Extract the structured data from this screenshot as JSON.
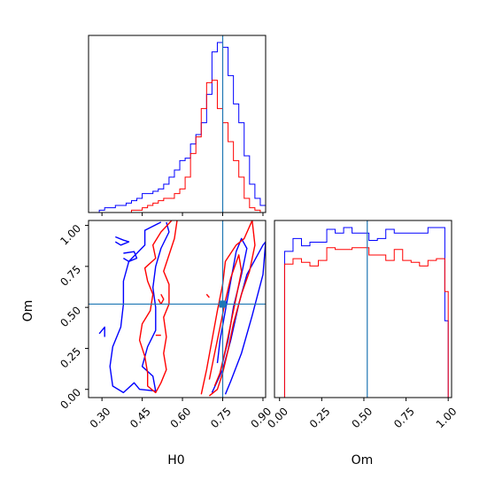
{
  "colors": {
    "series_a": "#0000ff",
    "series_b": "#ff0000",
    "truth": "#1f77b4"
  },
  "chart_data": [
    {
      "type": "histogram",
      "panel": "H0 marginal (top-left)",
      "xlim": [
        0.25,
        0.91
      ],
      "truth_x": 0.75,
      "yticks_shown": false,
      "series": [
        {
          "color": "blue",
          "bin_edges": [
            0.27,
            0.29,
            0.31,
            0.33,
            0.35,
            0.37,
            0.39,
            0.41,
            0.43,
            0.45,
            0.47,
            0.49,
            0.51,
            0.53,
            0.55,
            0.57,
            0.59,
            0.61,
            0.63,
            0.65,
            0.67,
            0.69,
            0.71,
            0.73,
            0.75,
            0.77,
            0.79,
            0.81,
            0.83,
            0.85,
            0.87,
            0.89,
            0.91
          ],
          "counts": [
            0,
            1,
            2,
            2,
            3,
            3,
            4,
            5,
            6,
            8,
            8,
            9,
            10,
            12,
            15,
            18,
            22,
            23,
            29,
            33,
            38,
            50,
            68,
            72,
            70,
            58,
            46,
            38,
            24,
            12,
            6,
            3
          ]
        },
        {
          "color": "red",
          "bin_edges": [
            0.27,
            0.29,
            0.31,
            0.33,
            0.35,
            0.37,
            0.39,
            0.41,
            0.43,
            0.45,
            0.47,
            0.49,
            0.51,
            0.53,
            0.55,
            0.57,
            0.59,
            0.61,
            0.63,
            0.65,
            0.67,
            0.69,
            0.71,
            0.73,
            0.75,
            0.77,
            0.79,
            0.81,
            0.83,
            0.85,
            0.87,
            0.89,
            0.91
          ],
          "counts": [
            0,
            0,
            0,
            0,
            0,
            0,
            0,
            1,
            1,
            2,
            3,
            4,
            5,
            6,
            6,
            8,
            10,
            15,
            25,
            32,
            44,
            55,
            56,
            44,
            38,
            30,
            22,
            15,
            6,
            2,
            1,
            0
          ]
        }
      ]
    },
    {
      "type": "contour",
      "panel": "Om vs H0 joint (bottom-left)",
      "xlabel": "H0",
      "ylabel": "Om",
      "xlim": [
        0.25,
        0.91
      ],
      "ylim": [
        -0.05,
        1.03
      ],
      "xticks": [
        "0.30",
        "0.45",
        "0.60",
        "0.75",
        "0.90"
      ],
      "yticks": [
        "0.00",
        "0.25",
        "0.50",
        "0.75",
        "1.00"
      ],
      "truth": {
        "x": 0.75,
        "y": 0.52
      },
      "series": [
        {
          "color": "blue",
          "contours": [
            [
              [
                0.52,
                1.02
              ],
              [
                0.46,
                0.97
              ],
              [
                0.46,
                0.88
              ],
              [
                0.4,
                0.78
              ],
              [
                0.38,
                0.66
              ],
              [
                0.38,
                0.52
              ],
              [
                0.37,
                0.38
              ],
              [
                0.34,
                0.26
              ],
              [
                0.33,
                0.14
              ],
              [
                0.34,
                0.02
              ],
              [
                0.38,
                -0.02
              ],
              [
                0.42,
                0.04
              ],
              [
                0.44,
                0.0
              ],
              [
                0.5,
                -0.01
              ],
              [
                0.49,
                0.08
              ],
              [
                0.45,
                0.14
              ],
              [
                0.47,
                0.26
              ],
              [
                0.5,
                0.36
              ],
              [
                0.5,
                0.5
              ],
              [
                0.49,
                0.62
              ],
              [
                0.5,
                0.75
              ],
              [
                0.52,
                0.86
              ],
              [
                0.55,
                0.96
              ],
              [
                0.54,
                1.02
              ]
            ],
            [
              [
                0.71,
                -0.02
              ],
              [
                0.75,
                0.12
              ],
              [
                0.78,
                0.3
              ],
              [
                0.81,
                0.52
              ],
              [
                0.84,
                0.7
              ],
              [
                0.88,
                0.82
              ],
              [
                0.9,
                0.88
              ],
              [
                0.91,
                0.9
              ],
              [
                0.9,
                0.7
              ],
              [
                0.86,
                0.45
              ],
              [
                0.82,
                0.22
              ],
              [
                0.78,
                0.05
              ],
              [
                0.76,
                -0.03
              ]
            ],
            [
              [
                0.74,
                0.1
              ],
              [
                0.77,
                0.3
              ],
              [
                0.79,
                0.5
              ],
              [
                0.82,
                0.7
              ],
              [
                0.84,
                0.86
              ],
              [
                0.82,
                0.92
              ],
              [
                0.8,
                0.84
              ],
              [
                0.78,
                0.66
              ],
              [
                0.76,
                0.48
              ],
              [
                0.74,
                0.3
              ],
              [
                0.73,
                0.16
              ]
            ],
            [
              [
                0.35,
                0.93
              ],
              [
                0.38,
                0.91
              ],
              [
                0.4,
                0.9
              ],
              [
                0.37,
                0.88
              ],
              [
                0.35,
                0.9
              ]
            ],
            [
              [
                0.38,
                0.83
              ],
              [
                0.42,
                0.84
              ],
              [
                0.43,
                0.8
              ],
              [
                0.4,
                0.78
              ],
              [
                0.38,
                0.8
              ]
            ],
            [
              [
                0.29,
                0.34
              ],
              [
                0.31,
                0.38
              ],
              [
                0.31,
                0.32
              ]
            ]
          ]
        },
        {
          "color": "red",
          "contours": [
            [
              [
                0.56,
                1.03
              ],
              [
                0.52,
                0.96
              ],
              [
                0.49,
                0.88
              ],
              [
                0.5,
                0.8
              ],
              [
                0.46,
                0.74
              ],
              [
                0.47,
                0.66
              ],
              [
                0.49,
                0.58
              ],
              [
                0.48,
                0.48
              ],
              [
                0.45,
                0.4
              ],
              [
                0.44,
                0.3
              ],
              [
                0.46,
                0.2
              ],
              [
                0.47,
                0.1
              ],
              [
                0.47,
                0.02
              ],
              [
                0.5,
                -0.02
              ],
              [
                0.52,
                0.04
              ],
              [
                0.54,
                0.12
              ],
              [
                0.53,
                0.22
              ],
              [
                0.54,
                0.32
              ],
              [
                0.53,
                0.44
              ],
              [
                0.55,
                0.52
              ],
              [
                0.55,
                0.64
              ],
              [
                0.53,
                0.72
              ],
              [
                0.55,
                0.82
              ],
              [
                0.57,
                0.92
              ],
              [
                0.58,
                1.03
              ]
            ],
            [
              [
                0.67,
                -0.03
              ],
              [
                0.69,
                0.12
              ],
              [
                0.71,
                0.3
              ],
              [
                0.73,
                0.48
              ],
              [
                0.75,
                0.64
              ],
              [
                0.76,
                0.78
              ],
              [
                0.8,
                0.88
              ],
              [
                0.83,
                0.92
              ],
              [
                0.86,
                1.03
              ],
              [
                0.87,
                0.88
              ],
              [
                0.85,
                0.72
              ],
              [
                0.82,
                0.58
              ],
              [
                0.79,
                0.4
              ],
              [
                0.77,
                0.24
              ],
              [
                0.75,
                0.1
              ],
              [
                0.73,
                0.0
              ],
              [
                0.7,
                -0.04
              ]
            ],
            [
              [
                0.7,
                0.06
              ],
              [
                0.72,
                0.22
              ],
              [
                0.74,
                0.38
              ],
              [
                0.76,
                0.54
              ],
              [
                0.78,
                0.68
              ],
              [
                0.81,
                0.82
              ],
              [
                0.82,
                0.72
              ],
              [
                0.8,
                0.56
              ],
              [
                0.78,
                0.4
              ],
              [
                0.76,
                0.24
              ],
              [
                0.74,
                0.1
              ],
              [
                0.72,
                0.02
              ]
            ],
            [
              [
                0.52,
                0.58
              ],
              [
                0.53,
                0.55
              ],
              [
                0.52,
                0.52
              ],
              [
                0.51,
                0.55
              ]
            ],
            [
              [
                0.5,
                0.33
              ],
              [
                0.52,
                0.33
              ]
            ],
            [
              [
                0.69,
                0.58
              ],
              [
                0.7,
                0.56
              ]
            ]
          ]
        }
      ]
    },
    {
      "type": "histogram",
      "panel": "Om marginal (bottom-right)",
      "xlabel": "Om",
      "xlim": [
        -0.03,
        1.02
      ],
      "xticks": [
        "0.00",
        "0.25",
        "0.50",
        "0.75",
        "1.00"
      ],
      "truth_x": 0.52,
      "yticks_shown": false,
      "series": [
        {
          "color": "blue",
          "bin_edges": [
            -0.02,
            0.03,
            0.08,
            0.13,
            0.18,
            0.23,
            0.28,
            0.33,
            0.38,
            0.43,
            0.48,
            0.53,
            0.58,
            0.63,
            0.68,
            0.73,
            0.78,
            0.83,
            0.88,
            0.93,
            0.98,
            1.0
          ],
          "counts": [
            0,
            80,
            87,
            83,
            85,
            85,
            92,
            90,
            93,
            90,
            90,
            86,
            87,
            92,
            90,
            90,
            90,
            90,
            93,
            93,
            42
          ]
        },
        {
          "color": "red",
          "bin_edges": [
            0.0,
            0.03,
            0.08,
            0.13,
            0.18,
            0.23,
            0.28,
            0.33,
            0.38,
            0.43,
            0.48,
            0.53,
            0.58,
            0.63,
            0.68,
            0.73,
            0.78,
            0.83,
            0.88,
            0.93,
            0.98,
            1.0
          ],
          "counts": [
            0,
            73,
            76,
            74,
            72,
            75,
            82,
            81,
            81,
            82,
            82,
            78,
            78,
            75,
            81,
            75,
            74,
            72,
            75,
            76,
            58
          ]
        }
      ]
    }
  ]
}
